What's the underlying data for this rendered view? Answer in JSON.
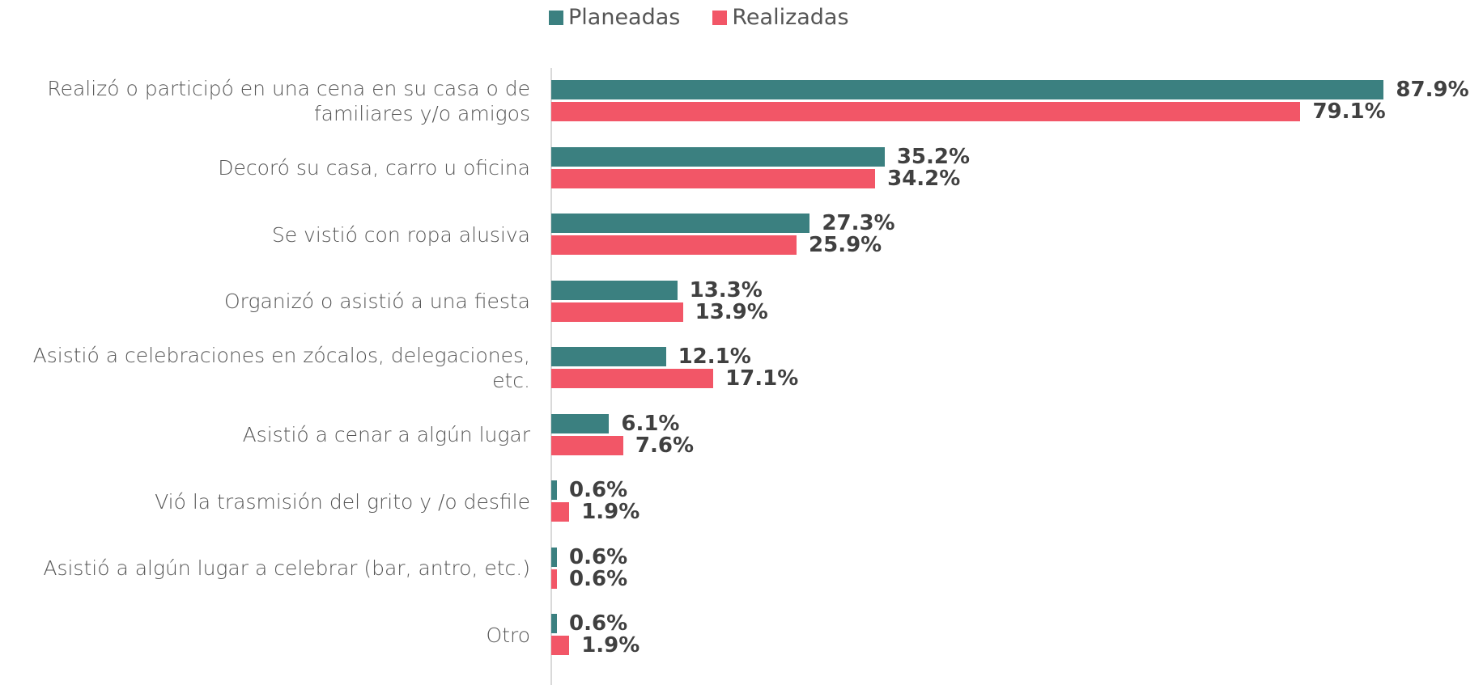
{
  "chart_data": {
    "type": "hbar",
    "categories": [
      "Realizó o participó en una cena en su casa o de familiares y/o amigos",
      "Decoró su casa, carro u oficina",
      "Se vistió con ropa alusiva",
      "Organizó o asistió a una fiesta",
      "Asistió a celebraciones en zócalos, delegaciones, etc.",
      "Asistió a cenar a algún lugar",
      "Vió la trasmisión del grito y /o desfile",
      "Asistió a algún lugar a celebrar (bar, antro, etc.)",
      "Otro"
    ],
    "series": [
      {
        "name": "Planeadas",
        "color": "#3b8080",
        "values": [
          87.9,
          35.2,
          27.3,
          13.3,
          12.1,
          6.1,
          0.6,
          0.6,
          0.6
        ],
        "value_labels": [
          "87.9%",
          "35.2%",
          "27.3%",
          "13.3%",
          "12.1%",
          "6.1%",
          "0.6%",
          "0.6%",
          "0.6%"
        ]
      },
      {
        "name": "Realizadas",
        "color": "#f25667",
        "values": [
          79.1,
          34.2,
          25.9,
          13.9,
          17.1,
          7.6,
          1.9,
          0.6,
          1.9
        ],
        "value_labels": [
          "79.1%",
          "34.2%",
          "25.9%",
          "13.9%",
          "17.1%",
          "7.6%",
          "1.9%",
          "0.6%",
          "1.9%"
        ]
      }
    ],
    "legend": "top"
  }
}
